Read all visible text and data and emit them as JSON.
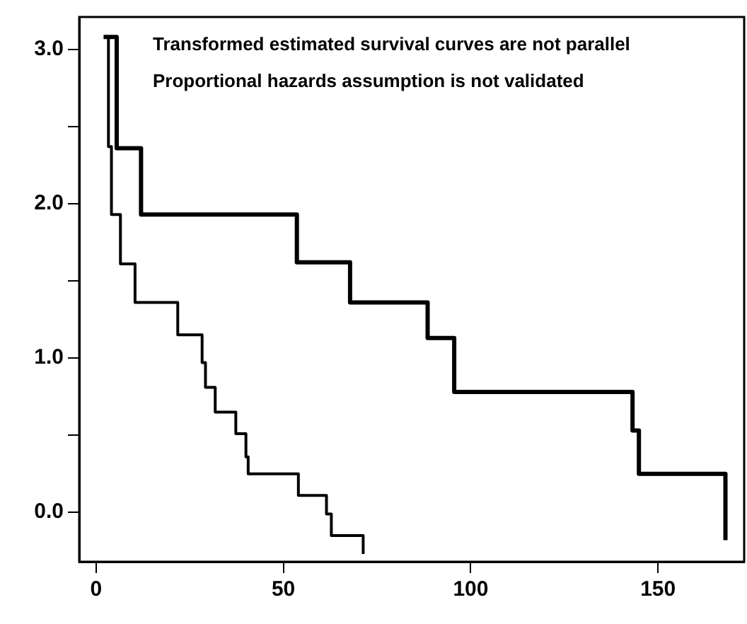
{
  "chart_data": {
    "type": "step",
    "xlim": [
      -4.5,
      173
    ],
    "ylim": [
      -0.32,
      3.21
    ],
    "xticks": [
      0,
      50,
      100,
      150
    ],
    "yticks": [
      {
        "value": 0,
        "label": "0.0"
      },
      {
        "value": 0.5,
        "label": null
      },
      {
        "value": 1,
        "label": "1.0"
      },
      {
        "value": 1.5,
        "label": null
      },
      {
        "value": 2,
        "label": "2.0"
      },
      {
        "value": 2.5,
        "label": null
      },
      {
        "value": 3,
        "label": "3.0"
      }
    ],
    "grid": false,
    "legend": false,
    "marker": "none",
    "line_style": "solid",
    "annotations": [
      "Transformed estimated survival curves are not parallel",
      "Proportional hazards assumption is not validated"
    ],
    "series": [
      {
        "color": "#000000",
        "x": [
          2.0,
          5.5,
          12,
          53.6,
          67.8,
          88.5,
          95.6,
          143.2,
          144.9,
          168
        ],
        "values": [
          3.08,
          2.36,
          1.93,
          1.62,
          1.36,
          1.13,
          0.78,
          0.53,
          0.25,
          -0.18
        ]
      },
      {
        "color": "#000000",
        "x": [
          2.3,
          3.3,
          4.1,
          6.5,
          10.4,
          21.8,
          28.3,
          29.2,
          31.8,
          37.3,
          40,
          40.6,
          54,
          61.5,
          62.8,
          71.3
        ],
        "values": [
          3.08,
          2.37,
          1.93,
          1.61,
          1.36,
          1.15,
          0.97,
          0.81,
          0.65,
          0.51,
          0.36,
          0.25,
          0.11,
          -0.01,
          -0.15,
          -0.27
        ]
      }
    ]
  }
}
